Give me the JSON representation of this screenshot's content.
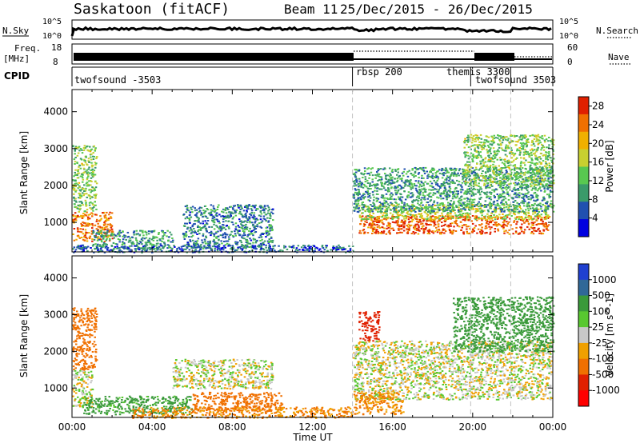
{
  "header": {
    "station": "Saskatoon (fitACF)",
    "beam": "Beam 11",
    "date_range": "25/Dec/2015 - 26/Dec/2015"
  },
  "strip_labels": {
    "nsky": "N.Sky",
    "nsearch": "N.Search",
    "freq_line1": "Freq.",
    "freq_line2": "[MHz]",
    "nave": "Nave",
    "cpid": "CPID",
    "nsky_ticks": [
      "10^5",
      "10^0"
    ],
    "nsearch_ticks": [
      "10^5",
      "10^0"
    ],
    "freq_ticks": [
      "18",
      "8"
    ],
    "nave_ticks": [
      "60",
      "0"
    ]
  },
  "cpid_blocks": [
    {
      "label": "twofsound -3503",
      "start_hour": 0
    },
    {
      "label": "rbsp 200",
      "start_hour": 14.0
    },
    {
      "label": "themis 3300",
      "start_hour": 19.9
    },
    {
      "label": "twofsound 3503",
      "start_hour": 21.9
    }
  ],
  "colors": {
    "power_scale": [
      "#0000e0",
      "#2050b0",
      "#3a9a6a",
      "#58c850",
      "#c8d030",
      "#f0b000",
      "#f07000",
      "#e02000"
    ],
    "velocity_scale": [
      "#2040d0",
      "#306898",
      "#3a9a3a",
      "#58c830",
      "#c8c8c8",
      "#f0a000",
      "#f07000",
      "#e02000",
      "#ff0000"
    ],
    "dashed_line": "#c0c0c0"
  },
  "chart_data": [
    {
      "type": "heatmap",
      "panel": "power",
      "ylabel": "Slant Range [km]",
      "xlabel": "",
      "x_ticks": [
        "00:00",
        "04:00",
        "08:00",
        "12:00",
        "16:00",
        "20:00",
        "00:00"
      ],
      "y_ticks": [
        "1000",
        "2000",
        "3000",
        "4000"
      ],
      "ylim": [
        200,
        4600
      ],
      "xlim_hours": [
        0,
        24
      ],
      "colorbar": {
        "label": "Power [dB]",
        "ticks": [
          "4",
          "8",
          "12",
          "16",
          "20",
          "24",
          "28"
        ],
        "range": [
          0,
          30
        ]
      },
      "scatter_regions": [
        {
          "x_hours": [
            0.0,
            2.0
          ],
          "range_km": [
            500,
            1300
          ],
          "level_db": 24
        },
        {
          "x_hours": [
            0.0,
            1.2
          ],
          "range_km": [
            1300,
            3100
          ],
          "level_db": 14
        },
        {
          "x_hours": [
            1.0,
            5.0
          ],
          "range_km": [
            300,
            800
          ],
          "level_db": 10
        },
        {
          "x_hours": [
            5.5,
            10.0
          ],
          "range_km": [
            300,
            1500
          ],
          "level_db": 8
        },
        {
          "x_hours": [
            0.0,
            14.0
          ],
          "range_km": [
            200,
            400
          ],
          "level_db": 6
        },
        {
          "x_hours": [
            14.3,
            23.8
          ],
          "range_km": [
            700,
            1200
          ],
          "level_db": 26
        },
        {
          "x_hours": [
            14.3,
            23.8
          ],
          "range_km": [
            1100,
            1500
          ],
          "level_db": 16
        },
        {
          "x_hours": [
            14.0,
            24.0
          ],
          "range_km": [
            1300,
            2500
          ],
          "level_db": 10
        },
        {
          "x_hours": [
            19.5,
            24.0
          ],
          "range_km": [
            2000,
            3400
          ],
          "level_db": 14
        }
      ]
    },
    {
      "type": "heatmap",
      "panel": "velocity",
      "ylabel": "Slant Range [km]",
      "xlabel": "Time UT",
      "x_ticks": [
        "00:00",
        "04:00",
        "08:00",
        "12:00",
        "16:00",
        "20:00",
        "00:00"
      ],
      "y_ticks": [
        "1000",
        "2000",
        "3000",
        "4000"
      ],
      "ylim": [
        200,
        4600
      ],
      "xlim_hours": [
        0,
        24
      ],
      "colorbar": {
        "label": "Velocity [m s^-1]",
        "ticks": [
          "1000",
          "500",
          "100",
          "25",
          "-25",
          "-100",
          "-500",
          "-1000"
        ],
        "range": [
          -1200,
          1200
        ]
      },
      "scatter_regions": [
        {
          "x_hours": [
            0.0,
            1.2
          ],
          "range_km": [
            1500,
            3200
          ],
          "level_ms": -200
        },
        {
          "x_hours": [
            0.0,
            1.0
          ],
          "range_km": [
            500,
            1500
          ],
          "level_ms": 0
        },
        {
          "x_hours": [
            0.5,
            6.0
          ],
          "range_km": [
            300,
            800
          ],
          "level_ms": 150
        },
        {
          "x_hours": [
            5.0,
            10.0
          ],
          "range_km": [
            1000,
            1800
          ],
          "level_ms": 0
        },
        {
          "x_hours": [
            6.0,
            10.5
          ],
          "range_km": [
            400,
            900
          ],
          "level_ms": -300
        },
        {
          "x_hours": [
            3.0,
            14.0
          ],
          "range_km": [
            200,
            500
          ],
          "level_ms": -100
        },
        {
          "x_hours": [
            14.0,
            23.9
          ],
          "range_km": [
            700,
            2300
          ],
          "level_ms": 0
        },
        {
          "x_hours": [
            14.0,
            16.5
          ],
          "range_km": [
            300,
            900
          ],
          "level_ms": -100
        },
        {
          "x_hours": [
            19.0,
            24.0
          ],
          "range_km": [
            2000,
            3500
          ],
          "level_ms": 300
        },
        {
          "x_hours": [
            14.3,
            15.3
          ],
          "range_km": [
            2300,
            3100
          ],
          "level_ms": -600
        }
      ]
    }
  ]
}
